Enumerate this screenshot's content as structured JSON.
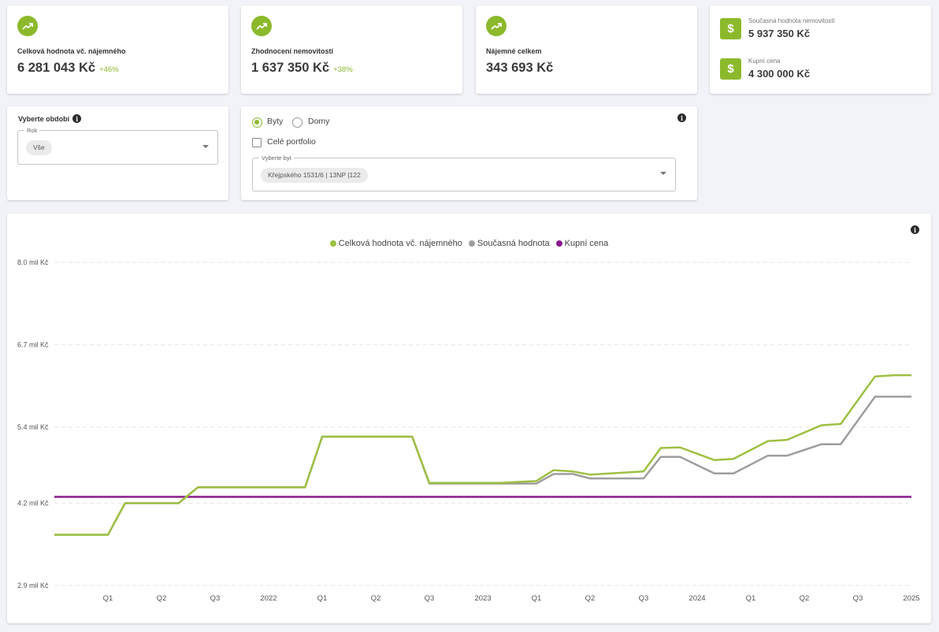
{
  "kpis": [
    {
      "label": "Celková hodnota vč. nájemného",
      "value": "6 281 043 Kč",
      "change": "+46%",
      "icon": "trending-up-icon"
    },
    {
      "label": "Zhodnocení nemovitostí",
      "value": "1 637 350 Kč",
      "change": "+38%",
      "icon": "trending-up-icon"
    },
    {
      "label": "Nájemné celkem",
      "value": "343 693 Kč",
      "change": "",
      "icon": "trending-up-icon"
    }
  ],
  "summary": {
    "current_value_label": "Současná hodnota nemovitostí",
    "current_value": "5 937 350 Kč",
    "purchase_price_label": "Kupní cena",
    "purchase_price": "4 300 000 Kč",
    "icon": "dollar-icon"
  },
  "period_filter": {
    "title": "Vyberte období",
    "field_label": "Rok",
    "selected": "Vše"
  },
  "property_filter": {
    "type_options": [
      "Byty",
      "Domy"
    ],
    "selected_type": "Byty",
    "whole_portfolio_label": "Celé portfolio",
    "whole_portfolio_checked": false,
    "unit_field_label": "Vyberte byt",
    "unit_selected": "Křejpského 1531/6 | 13NP |122"
  },
  "colors": {
    "accent": "#8cb92c",
    "series_total": "#9dc042",
    "series_current": "#9e9e9e",
    "series_purchase": "#8b1a8b"
  },
  "chart_data": {
    "type": "line",
    "title": "",
    "xlabel": "",
    "ylabel": "",
    "ylim": [
      2.9,
      8.0
    ],
    "y_ticks": [
      "8.0 mil Kč",
      "6.7 mil Kč",
      "5.4 mil Kč",
      "4.2 mil Kč",
      "2.9 mil Kč"
    ],
    "y_tick_values": [
      8.0,
      6.7,
      5.4,
      4.2,
      2.9
    ],
    "x_ticks": [
      "Q1",
      "Q2",
      "Q3",
      "2022",
      "Q1",
      "Q2",
      "Q3",
      "2023",
      "Q1",
      "Q2",
      "Q3",
      "2024",
      "Q1",
      "Q2",
      "Q3",
      "2025"
    ],
    "x_tick_values": [
      2021.25,
      2021.5,
      2021.75,
      2022.0,
      2022.25,
      2022.5,
      2022.75,
      2023.0,
      2023.25,
      2023.5,
      2023.75,
      2024.0,
      2024.25,
      2024.5,
      2024.75,
      2025.0
    ],
    "xlim": [
      2021.0,
      2025.0
    ],
    "legend_position": "top-center",
    "grid": true,
    "series": [
      {
        "name": "Celková hodnota vč. nájemného",
        "color_key": "series_total",
        "x": [
          2021.0,
          2021.25,
          2021.33,
          2021.58,
          2021.67,
          2022.17,
          2022.25,
          2022.67,
          2022.75,
          2023.08,
          2023.25,
          2023.33,
          2023.42,
          2023.5,
          2023.75,
          2023.83,
          2023.92,
          2024.08,
          2024.17,
          2024.33,
          2024.42,
          2024.58,
          2024.67,
          2024.83,
          2024.92,
          2025.0
        ],
        "y": [
          3.7,
          3.7,
          4.2,
          4.2,
          4.45,
          4.45,
          5.25,
          5.25,
          4.52,
          4.52,
          4.55,
          4.72,
          4.7,
          4.65,
          4.7,
          5.07,
          5.08,
          4.88,
          4.9,
          5.18,
          5.2,
          5.43,
          5.45,
          6.2,
          6.22,
          6.22
        ],
        "values": [
          3.7,
          3.7,
          4.2,
          4.2,
          4.45,
          4.45,
          5.25,
          5.25,
          4.52,
          4.52,
          4.55,
          4.72,
          4.7,
          4.65,
          4.7,
          5.07,
          5.08,
          4.88,
          4.9,
          5.18,
          5.2,
          5.43,
          5.45,
          6.2,
          6.22,
          6.22
        ]
      },
      {
        "name": "Současná hodnota",
        "color_key": "series_current",
        "x": [
          2021.0,
          2021.25,
          2021.33,
          2021.58,
          2021.67,
          2022.17,
          2022.25,
          2022.67,
          2022.75,
          2023.08,
          2023.25,
          2023.33,
          2023.42,
          2023.5,
          2023.75,
          2023.83,
          2023.92,
          2024.08,
          2024.17,
          2024.33,
          2024.42,
          2024.58,
          2024.67,
          2024.83,
          2024.92,
          2025.0
        ],
        "y": [
          3.7,
          3.7,
          4.2,
          4.2,
          4.45,
          4.45,
          5.25,
          5.25,
          4.51,
          4.51,
          4.51,
          4.66,
          4.66,
          4.59,
          4.59,
          4.93,
          4.93,
          4.67,
          4.67,
          4.95,
          4.95,
          5.13,
          5.13,
          5.88,
          5.88,
          5.88
        ],
        "values": [
          3.7,
          3.7,
          4.2,
          4.2,
          4.45,
          4.45,
          5.25,
          5.25,
          4.51,
          4.51,
          4.51,
          4.66,
          4.66,
          4.59,
          4.59,
          4.93,
          4.93,
          4.67,
          4.67,
          4.95,
          4.95,
          5.13,
          5.13,
          5.88,
          5.88,
          5.88
        ]
      },
      {
        "name": "Kupní cena",
        "color_key": "series_purchase",
        "x": [
          2021.0,
          2025.0
        ],
        "y": [
          4.3,
          4.3
        ],
        "values": [
          4.3,
          4.3
        ]
      }
    ]
  }
}
